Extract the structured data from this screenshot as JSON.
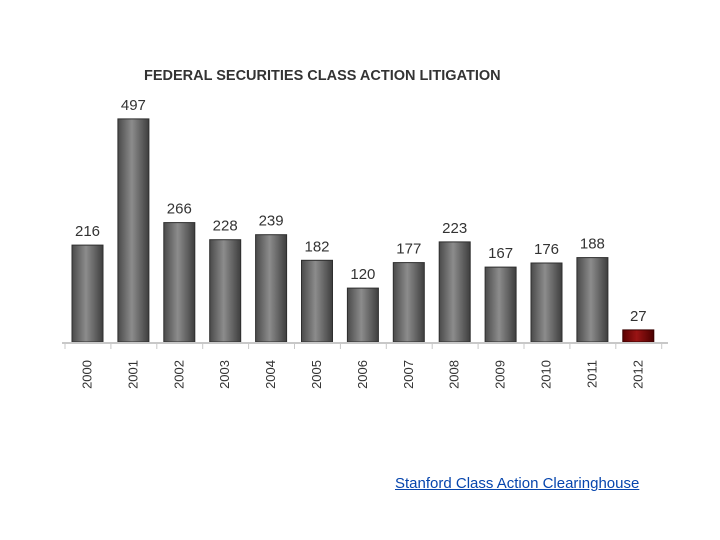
{
  "chart_data": {
    "type": "bar",
    "title": "FEDERAL SECURITIES CLASS ACTION LITIGATION",
    "categories": [
      "2000",
      "2001",
      "2002",
      "2003",
      "2004",
      "2005",
      "2006",
      "2007",
      "2008",
      "2009",
      "2010",
      "2011",
      "2012"
    ],
    "values": [
      216,
      497,
      266,
      228,
      239,
      182,
      120,
      177,
      223,
      167,
      176,
      188,
      27
    ],
    "xlabel": "",
    "ylabel": "",
    "ylim": [
      0,
      500
    ],
    "grid": false,
    "legend": "none",
    "colors": {
      "bar": "#6e6e6e",
      "bar_highlight": "#7a0a0a",
      "axis": "#c8c8c8",
      "text": "#333333"
    },
    "highlight_category": "2012"
  },
  "source": {
    "label": "Stanford Class Action Clearinghouse"
  }
}
